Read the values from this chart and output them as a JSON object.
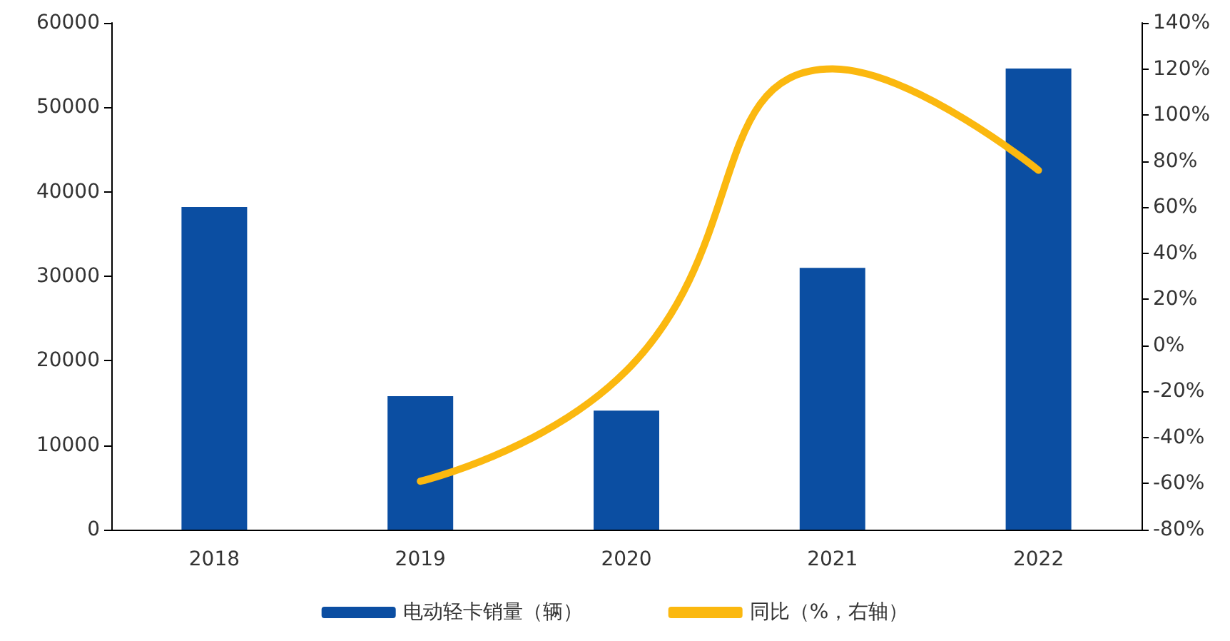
{
  "chart_data": {
    "type": "bar",
    "categories": [
      "2018",
      "2019",
      "2020",
      "2021",
      "2022"
    ],
    "series": [
      {
        "name": "电动轻卡销量（辆）",
        "color": "#0b4ea2",
        "values": [
          38200,
          15800,
          14100,
          31000,
          54600
        ]
      },
      {
        "name": "同比（%，右轴）",
        "type": "line",
        "axis": "y2",
        "color": "#fbb80f",
        "values": [
          null,
          -59,
          -11,
          120,
          76
        ],
        "marker": "none",
        "line_style": "solid"
      }
    ],
    "ylim": [
      0,
      60000
    ],
    "yticks": [
      0,
      10000,
      20000,
      30000,
      40000,
      50000,
      60000
    ],
    "y2lim": [
      -80,
      140
    ],
    "y2ticks": [
      {
        "value": -80,
        "label": "-80%"
      },
      {
        "value": -60,
        "label": "-60%"
      },
      {
        "value": -40,
        "label": "-40%"
      },
      {
        "value": -20,
        "label": "-20%"
      },
      {
        "value": 0,
        "label": "0%"
      },
      {
        "value": 20,
        "label": "20%"
      },
      {
        "value": 40,
        "label": "40%"
      },
      {
        "value": 60,
        "label": "60%"
      },
      {
        "value": 80,
        "label": "80%"
      },
      {
        "value": 100,
        "label": "100%"
      },
      {
        "value": 120,
        "label": "120%"
      },
      {
        "value": 140,
        "label": "140%"
      }
    ],
    "grid": false,
    "legend": "bottom"
  }
}
